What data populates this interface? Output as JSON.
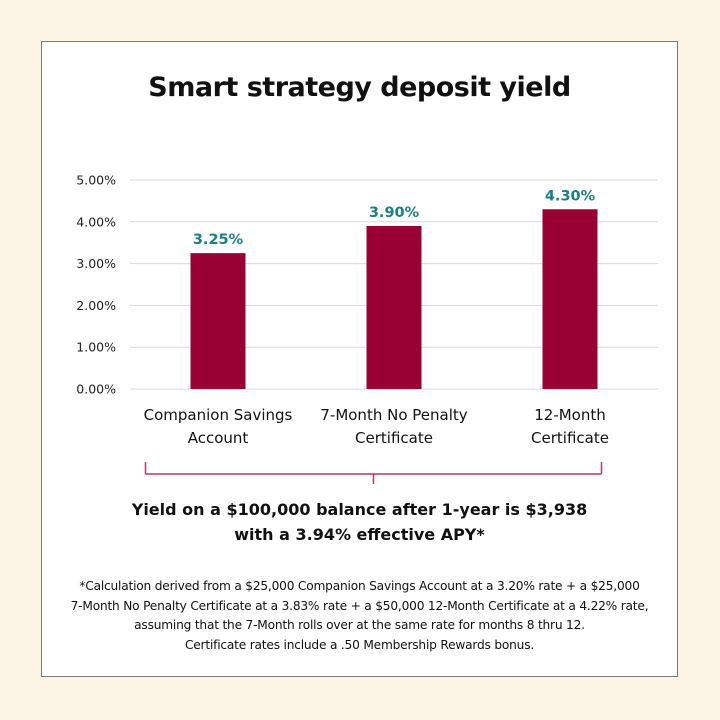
{
  "chart_data": {
    "type": "bar",
    "title": "Smart strategy deposit yield",
    "categories": [
      [
        "Companion Savings",
        "Account"
      ],
      [
        "7-Month No Penalty",
        "Certificate"
      ],
      [
        "12-Month",
        "Certificate"
      ]
    ],
    "values": [
      3.25,
      3.9,
      4.3
    ],
    "data_labels": [
      "3.25%",
      "3.90%",
      "4.30%"
    ],
    "yticks": [
      "0.00%",
      "1.00%",
      "2.00%",
      "3.00%",
      "4.00%",
      "5.00%"
    ],
    "ylim": [
      0,
      5
    ],
    "grid": true,
    "colors": {
      "bar": "#990033",
      "data_label": "#1a7f86",
      "bracket": "#b53a5a",
      "grid": "#d9d9d9"
    }
  },
  "summary": {
    "line1": "Yield on a $100,000 balance after 1-year is $3,938",
    "line2": "with a 3.94% effective APY*"
  },
  "footnote": [
    "*Calculation derived from a $25,000 Companion Savings Account at a 3.20% rate + a $25,000",
    "7-Month No Penalty Certificate at a 3.83% rate + a $50,000 12-Month Certificate at a 4.22% rate,",
    "assuming that the 7-Month rolls over at the same rate for months 8 thru 12.",
    "Certificate rates include a .50 Membership Rewards bonus."
  ]
}
